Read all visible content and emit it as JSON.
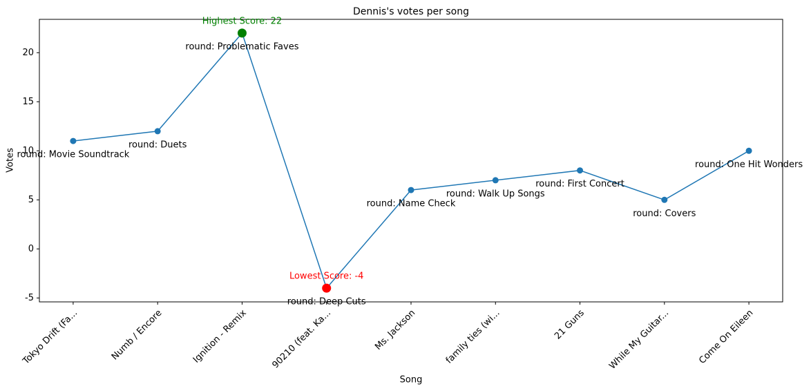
{
  "chart_data": {
    "type": "line",
    "title": "Dennis's votes per song",
    "xlabel": "Song",
    "ylabel": "Votes",
    "categories": [
      "Tokyo Drift (Fa...",
      "Numb / Encore",
      "Ignition - Remix",
      "90210 (feat. Ka...",
      "Ms. Jackson",
      "family ties (wi...",
      "21 Guns",
      "While My Guitar...",
      "Come On Eileen"
    ],
    "values": [
      11,
      12,
      22,
      -4,
      6,
      7,
      8,
      5,
      10
    ],
    "point_labels": [
      "round: Movie Soundtrack",
      "round: Duets",
      "round: Problematic Faves",
      "round: Deep Cuts",
      "round: Name Check",
      "round: Walk Up Songs",
      "round: First Concert",
      "round: Covers",
      "round: One Hit Wonders"
    ],
    "color": "#1f77b4",
    "highest": {
      "text": "Highest Score: 22",
      "color": "green"
    },
    "lowest": {
      "text": "Lowest Score: -4",
      "color": "red"
    },
    "ylim": [
      -5.4,
      23.4
    ],
    "yticks": [
      -5,
      0,
      5,
      10,
      15,
      20
    ],
    "grid": false
  }
}
